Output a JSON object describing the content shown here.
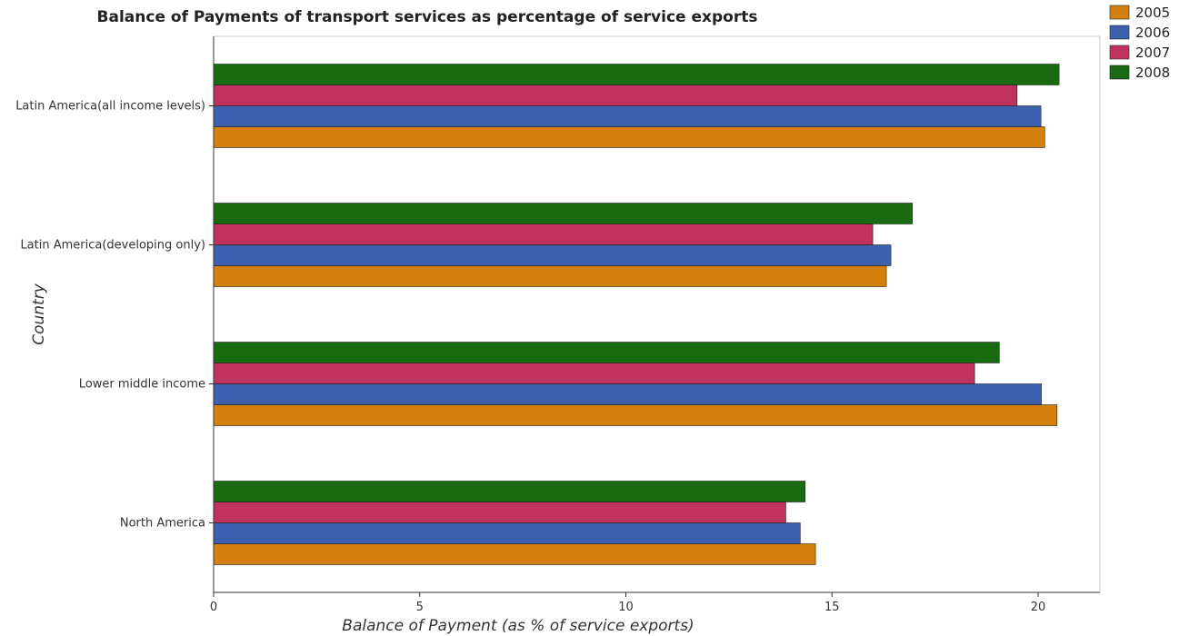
{
  "chart_data": {
    "type": "bar",
    "orientation": "horizontal",
    "title": "Balance of Payments of transport services as percentage of service exports",
    "xlabel": "Balance of Payment (as % of service exports)",
    "ylabel": "Country",
    "xlim": [
      0,
      21.5
    ],
    "xticks": [
      0,
      5,
      10,
      15,
      20
    ],
    "grid": false,
    "legend_position": "top-right",
    "categories": [
      "Latin America(all income levels)",
      "Latin America(developing only)",
      "Lower middle income",
      "North America"
    ],
    "series": [
      {
        "name": "2005",
        "color": "#d4800e",
        "values": [
          20.16,
          16.32,
          20.46,
          14.6
        ]
      },
      {
        "name": "2006",
        "color": "#3c5fae",
        "values": [
          20.07,
          16.43,
          20.08,
          14.23
        ]
      },
      {
        "name": "2007",
        "color": "#c0335f",
        "values": [
          19.49,
          15.99,
          18.46,
          13.88
        ]
      },
      {
        "name": "2008",
        "color": "#1a6a12",
        "values": [
          20.51,
          16.95,
          19.06,
          14.35
        ]
      }
    ]
  }
}
